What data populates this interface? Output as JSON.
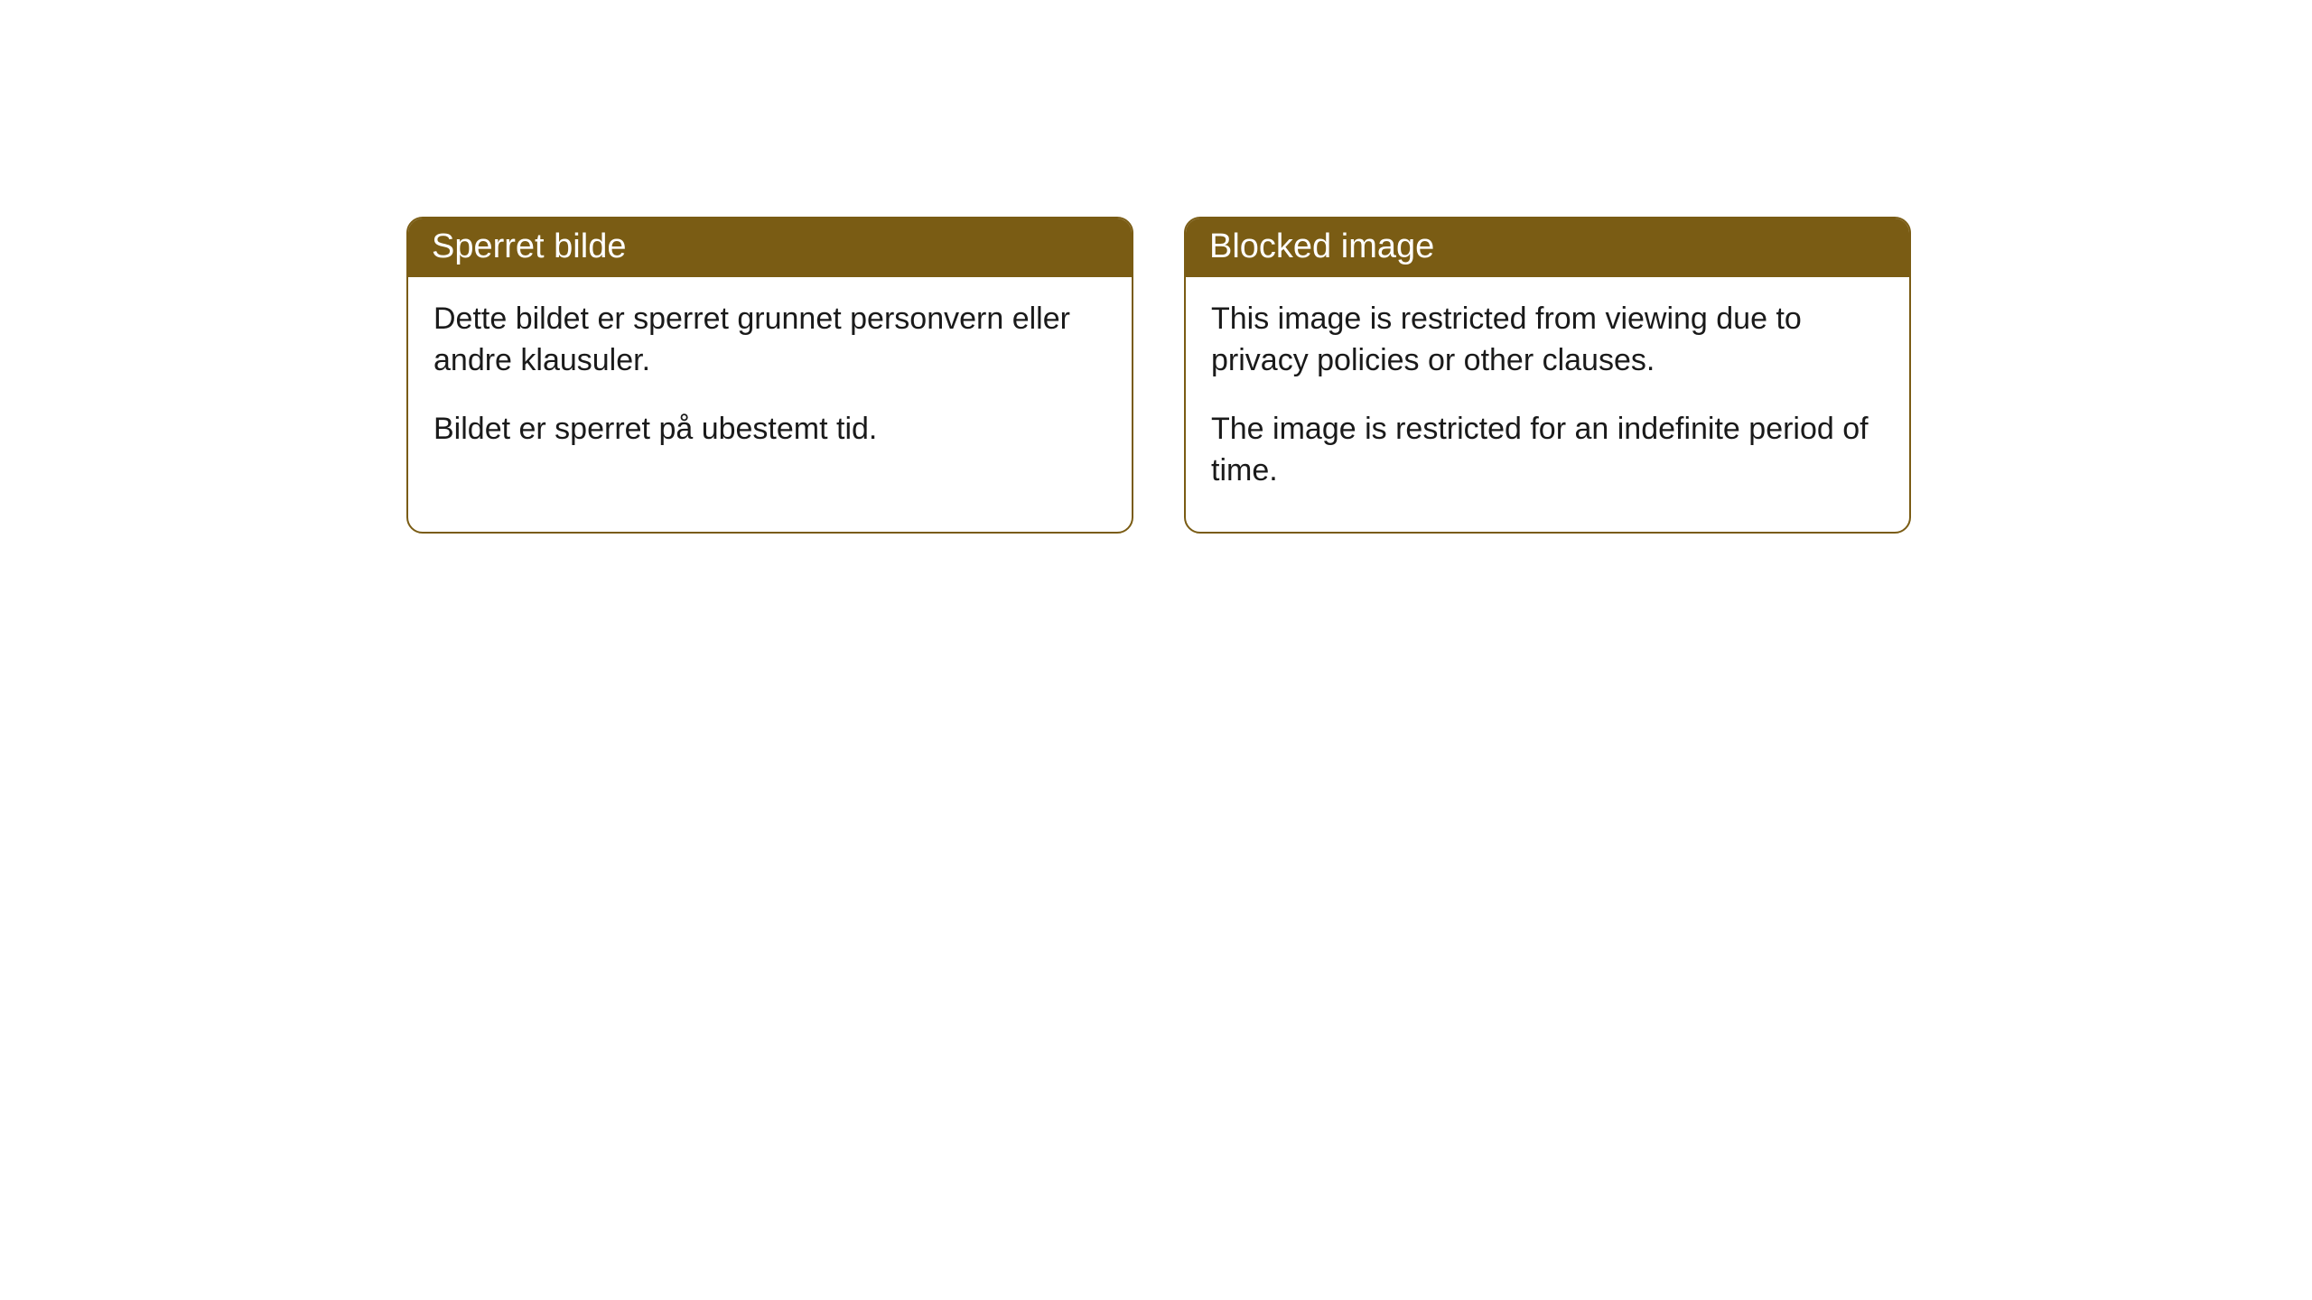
{
  "cards": [
    {
      "title": "Sperret bilde",
      "paragraph1": "Dette bildet er sperret grunnet personvern eller andre klausuler.",
      "paragraph2": "Bildet er sperret på ubestemt tid."
    },
    {
      "title": "Blocked image",
      "paragraph1": "This image is restricted from viewing due to privacy policies or other clauses.",
      "paragraph2": "The image is restricted for an indefinite period of time."
    }
  ],
  "style": {
    "header_bg_color": "#7a5c14",
    "header_text_color": "#ffffff",
    "border_color": "#7a5c14",
    "body_text_color": "#1a1a1a",
    "background_color": "#ffffff",
    "border_radius": 18,
    "header_fontsize": 38,
    "body_fontsize": 34
  }
}
